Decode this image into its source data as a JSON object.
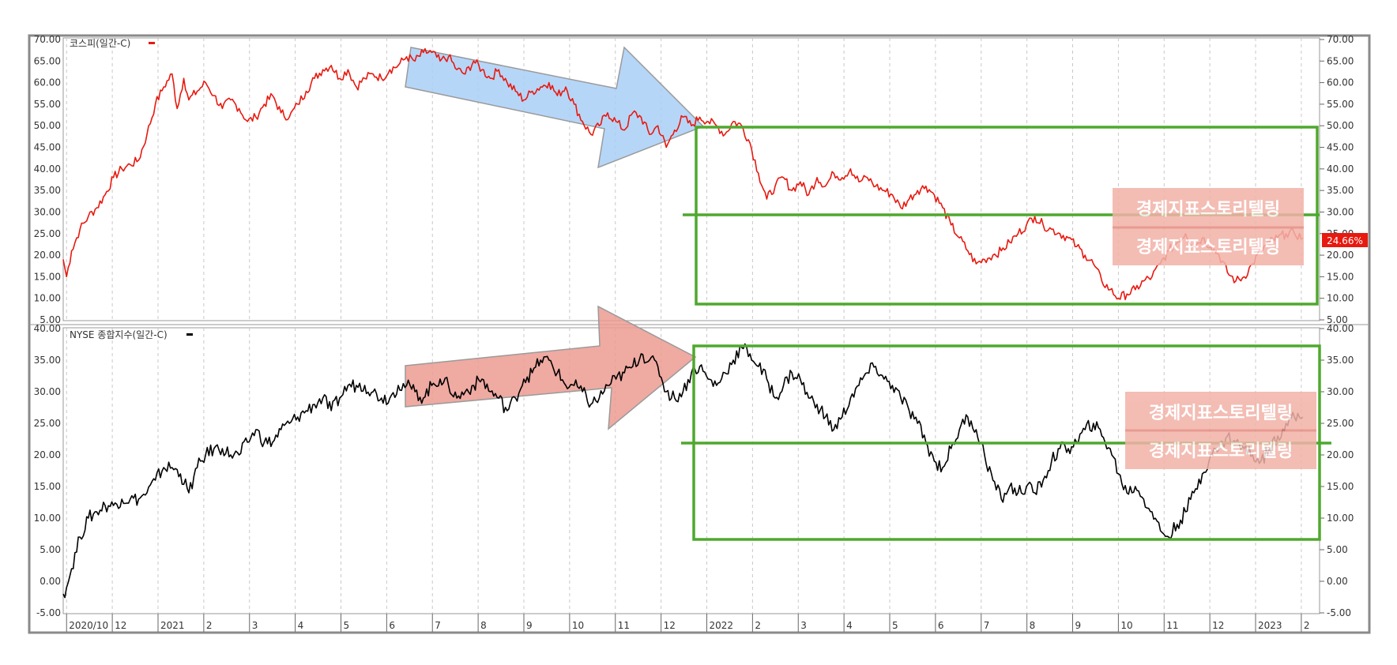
{
  "colors": {
    "kospi_line": "#e8190f",
    "nyse_line": "#000000",
    "green_box": "#4fa82e",
    "blue_arrow": "#a9cff7",
    "red_arrow": "#ec9b92",
    "watermark": "#f2b2a8",
    "last_badge": "#e8190f",
    "grid": "#c8c8c8",
    "frame": "#8a8a8a"
  },
  "watermark_text": "경제지표스토리텔링",
  "chart_data": [
    {
      "type": "line",
      "series": [
        {
          "name": "코스피(일간-C)",
          "color": "#e8190f"
        }
      ],
      "legend": "top-left",
      "yticks": [
        "70.00",
        "65.00",
        "60.00",
        "55.00",
        "50.00",
        "45.00",
        "40.00",
        "35.00",
        "30.00",
        "25.00",
        "20.00",
        "15.00",
        "10.00",
        "5.00"
      ],
      "ylim": [
        5,
        70
      ],
      "last_value_label": "24.66%",
      "grid": "vertical dashed",
      "points": [
        [
          0,
          19
        ],
        [
          2,
          15
        ],
        [
          5,
          21
        ],
        [
          10,
          26
        ],
        [
          15,
          29
        ],
        [
          20,
          31
        ],
        [
          25,
          34
        ],
        [
          30,
          38
        ],
        [
          35,
          40
        ],
        [
          40,
          41
        ],
        [
          45,
          42
        ],
        [
          50,
          48
        ],
        [
          55,
          55
        ],
        [
          60,
          59
        ],
        [
          65,
          62
        ],
        [
          68,
          54
        ],
        [
          72,
          61
        ],
        [
          75,
          56
        ],
        [
          80,
          58
        ],
        [
          85,
          60
        ],
        [
          90,
          57
        ],
        [
          95,
          54
        ],
        [
          100,
          56
        ],
        [
          105,
          54
        ],
        [
          110,
          51
        ],
        [
          115,
          52
        ],
        [
          120,
          55
        ],
        [
          125,
          57
        ],
        [
          130,
          53
        ],
        [
          135,
          52
        ],
        [
          140,
          55
        ],
        [
          145,
          58
        ],
        [
          150,
          61
        ],
        [
          155,
          63
        ],
        [
          160,
          64
        ],
        [
          165,
          61
        ],
        [
          170,
          63
        ],
        [
          175,
          59
        ],
        [
          180,
          61
        ],
        [
          185,
          62
        ],
        [
          190,
          61
        ],
        [
          195,
          63
        ],
        [
          200,
          64
        ],
        [
          205,
          66
        ],
        [
          210,
          65
        ],
        [
          215,
          67
        ],
        [
          220,
          67
        ],
        [
          225,
          65
        ],
        [
          230,
          66
        ],
        [
          235,
          63
        ],
        [
          240,
          62
        ],
        [
          245,
          65
        ],
        [
          250,
          63
        ],
        [
          255,
          61
        ],
        [
          260,
          63
        ],
        [
          265,
          60
        ],
        [
          270,
          58
        ],
        [
          275,
          56
        ],
        [
          280,
          58
        ],
        [
          285,
          59
        ],
        [
          290,
          60
        ],
        [
          295,
          57
        ],
        [
          300,
          59
        ],
        [
          305,
          55
        ],
        [
          310,
          51
        ],
        [
          315,
          48
        ],
        [
          320,
          50
        ],
        [
          325,
          53
        ],
        [
          330,
          51
        ],
        [
          335,
          49
        ],
        [
          340,
          53
        ],
        [
          345,
          52
        ],
        [
          350,
          48
        ],
        [
          355,
          50
        ],
        [
          360,
          45
        ],
        [
          365,
          49
        ],
        [
          370,
          52
        ],
        [
          375,
          50
        ],
        [
          380,
          52
        ],
        [
          385,
          51
        ],
        [
          390,
          50
        ],
        [
          395,
          48
        ],
        [
          400,
          51
        ],
        [
          405,
          50
        ],
        [
          410,
          46
        ],
        [
          415,
          39
        ],
        [
          420,
          33
        ],
        [
          425,
          36
        ],
        [
          430,
          38
        ],
        [
          435,
          35
        ],
        [
          440,
          37
        ],
        [
          445,
          34
        ],
        [
          450,
          38
        ],
        [
          455,
          36
        ],
        [
          460,
          39
        ],
        [
          465,
          38
        ],
        [
          470,
          40
        ],
        [
          475,
          37
        ],
        [
          480,
          38
        ],
        [
          485,
          36
        ],
        [
          490,
          35
        ],
        [
          495,
          34
        ],
        [
          500,
          31
        ],
        [
          505,
          33
        ],
        [
          510,
          35
        ],
        [
          515,
          36
        ],
        [
          520,
          34
        ],
        [
          525,
          31
        ],
        [
          530,
          27
        ],
        [
          535,
          24
        ],
        [
          540,
          21
        ],
        [
          545,
          18
        ],
        [
          550,
          19
        ],
        [
          555,
          20
        ],
        [
          560,
          21
        ],
        [
          565,
          23
        ],
        [
          570,
          25
        ],
        [
          575,
          27
        ],
        [
          580,
          29
        ],
        [
          585,
          27
        ],
        [
          590,
          26
        ],
        [
          595,
          25
        ],
        [
          600,
          24
        ],
        [
          605,
          22
        ],
        [
          610,
          20
        ],
        [
          615,
          18
        ],
        [
          620,
          14
        ],
        [
          625,
          12
        ],
        [
          630,
          10
        ],
        [
          635,
          11
        ],
        [
          640,
          12
        ],
        [
          645,
          14
        ],
        [
          650,
          15
        ],
        [
          655,
          18
        ],
        [
          660,
          21
        ],
        [
          665,
          23
        ],
        [
          670,
          25
        ],
        [
          675,
          22
        ],
        [
          680,
          24
        ],
        [
          685,
          22
        ],
        [
          690,
          20
        ],
        [
          695,
          16
        ],
        [
          700,
          14
        ],
        [
          705,
          15
        ],
        [
          710,
          18
        ],
        [
          715,
          21
        ],
        [
          720,
          23
        ],
        [
          725,
          24
        ],
        [
          730,
          25
        ],
        [
          735,
          25
        ],
        [
          740,
          24
        ]
      ]
    },
    {
      "type": "line",
      "series": [
        {
          "name": "NYSE 종합지수(일간-C)",
          "color": "#000000"
        }
      ],
      "legend": "top-left",
      "yticks": [
        "40.00",
        "35.00",
        "30.00",
        "25.00",
        "20.00",
        "15.00",
        "10.00",
        "5.00",
        "0.00",
        "-5.00"
      ],
      "ylim": [
        -5,
        40
      ],
      "grid": "vertical dashed",
      "points": [
        [
          0,
          -2
        ],
        [
          2,
          -1
        ],
        [
          5,
          2
        ],
        [
          10,
          7
        ],
        [
          15,
          10
        ],
        [
          20,
          11
        ],
        [
          25,
          12
        ],
        [
          30,
          12
        ],
        [
          35,
          13
        ],
        [
          40,
          13
        ],
        [
          45,
          13
        ],
        [
          50,
          14
        ],
        [
          55,
          16
        ],
        [
          60,
          18
        ],
        [
          65,
          18
        ],
        [
          70,
          17
        ],
        [
          75,
          14
        ],
        [
          80,
          18
        ],
        [
          85,
          20
        ],
        [
          90,
          21
        ],
        [
          95,
          21
        ],
        [
          100,
          20
        ],
        [
          105,
          20
        ],
        [
          110,
          22
        ],
        [
          115,
          24
        ],
        [
          120,
          22
        ],
        [
          125,
          22
        ],
        [
          130,
          24
        ],
        [
          135,
          25
        ],
        [
          140,
          26
        ],
        [
          145,
          27
        ],
        [
          150,
          28
        ],
        [
          155,
          29
        ],
        [
          160,
          27
        ],
        [
          165,
          29
        ],
        [
          170,
          31
        ],
        [
          175,
          31
        ],
        [
          180,
          31
        ],
        [
          185,
          30
        ],
        [
          190,
          29
        ],
        [
          195,
          29
        ],
        [
          200,
          31
        ],
        [
          205,
          31
        ],
        [
          210,
          30
        ],
        [
          215,
          29
        ],
        [
          220,
          31
        ],
        [
          225,
          32
        ],
        [
          230,
          31
        ],
        [
          235,
          29
        ],
        [
          240,
          30
        ],
        [
          245,
          31
        ],
        [
          250,
          32
        ],
        [
          255,
          30
        ],
        [
          260,
          29
        ],
        [
          265,
          27
        ],
        [
          270,
          29
        ],
        [
          275,
          32
        ],
        [
          280,
          33
        ],
        [
          285,
          35
        ],
        [
          290,
          35
        ],
        [
          295,
          33
        ],
        [
          300,
          31
        ],
        [
          305,
          31
        ],
        [
          310,
          30
        ],
        [
          315,
          28
        ],
        [
          320,
          29
        ],
        [
          325,
          31
        ],
        [
          330,
          32
        ],
        [
          335,
          33
        ],
        [
          340,
          34
        ],
        [
          345,
          36
        ],
        [
          350,
          35
        ],
        [
          355,
          34
        ],
        [
          360,
          30
        ],
        [
          365,
          29
        ],
        [
          370,
          30
        ],
        [
          375,
          33
        ],
        [
          380,
          34
        ],
        [
          385,
          32
        ],
        [
          390,
          31
        ],
        [
          395,
          33
        ],
        [
          400,
          35
        ],
        [
          405,
          37
        ],
        [
          410,
          36
        ],
        [
          415,
          34
        ],
        [
          420,
          32
        ],
        [
          425,
          29
        ],
        [
          430,
          31
        ],
        [
          435,
          33
        ],
        [
          440,
          32
        ],
        [
          445,
          29
        ],
        [
          450,
          28
        ],
        [
          455,
          26
        ],
        [
          460,
          24
        ],
        [
          465,
          26
        ],
        [
          470,
          29
        ],
        [
          475,
          31
        ],
        [
          480,
          33
        ],
        [
          485,
          34
        ],
        [
          490,
          32
        ],
        [
          495,
          31
        ],
        [
          500,
          29
        ],
        [
          505,
          27
        ],
        [
          510,
          25
        ],
        [
          515,
          22
        ],
        [
          520,
          19
        ],
        [
          525,
          18
        ],
        [
          530,
          21
        ],
        [
          535,
          24
        ],
        [
          540,
          26
        ],
        [
          545,
          24
        ],
        [
          550,
          20
        ],
        [
          555,
          16
        ],
        [
          560,
          13
        ],
        [
          565,
          15
        ],
        [
          570,
          14
        ],
        [
          575,
          15
        ],
        [
          580,
          14
        ],
        [
          585,
          16
        ],
        [
          590,
          19
        ],
        [
          595,
          21
        ],
        [
          600,
          21
        ],
        [
          605,
          22
        ],
        [
          610,
          24
        ],
        [
          615,
          25
        ],
        [
          620,
          23
        ],
        [
          625,
          21
        ],
        [
          630,
          17
        ],
        [
          635,
          14
        ],
        [
          640,
          15
        ],
        [
          645,
          13
        ],
        [
          650,
          11
        ],
        [
          655,
          8
        ],
        [
          660,
          7
        ],
        [
          665,
          9
        ],
        [
          670,
          11
        ],
        [
          675,
          14
        ],
        [
          680,
          17
        ],
        [
          685,
          20
        ],
        [
          690,
          21
        ],
        [
          695,
          23
        ],
        [
          700,
          22
        ],
        [
          705,
          21
        ],
        [
          710,
          20
        ],
        [
          715,
          19
        ],
        [
          720,
          21
        ],
        [
          725,
          23
        ],
        [
          730,
          25
        ],
        [
          735,
          26
        ],
        [
          740,
          26
        ]
      ]
    }
  ],
  "x_axis": {
    "labels": [
      "2020/10",
      "12",
      "2021",
      "2",
      "3",
      "4",
      "5",
      "6",
      "7",
      "8",
      "9",
      "10",
      "11",
      "12",
      "2022",
      "2",
      "3",
      "4",
      "5",
      "6",
      "7",
      "8",
      "9",
      "10",
      "11",
      "12",
      "2023",
      "2"
    ]
  }
}
